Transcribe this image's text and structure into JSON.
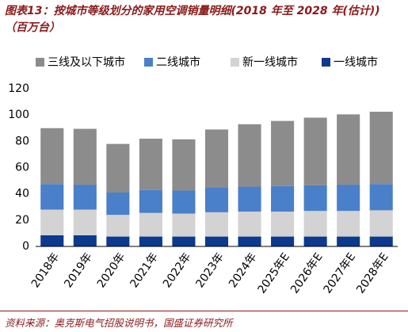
{
  "chart_data": {
    "type": "stacked-bar",
    "title": "图表13：按城市等级划分的家用空调销量明细(2018 年至 2028 年(估计))（百万台）",
    "source": "资料来源：奥克斯电气招股说明书，国盛证券研究所",
    "categories": [
      "2018年",
      "2019年",
      "2020年",
      "2021年",
      "2022年",
      "2023年",
      "2024年",
      "2025年E",
      "2026年E",
      "2027年E",
      "2028年E"
    ],
    "series": [
      {
        "name": "三线及以下城市",
        "color": "#8c8c8c",
        "values": [
          42.5,
          42.5,
          37,
          39,
          39,
          44,
          47.5,
          49.5,
          51.5,
          53.5,
          55
        ]
      },
      {
        "name": "二线城市",
        "color": "#4a7fc9",
        "values": [
          19.5,
          19,
          17,
          17.5,
          17.5,
          19,
          19,
          19.5,
          19.5,
          20,
          20
        ]
      },
      {
        "name": "新一线城市",
        "color": "#d3d3d3",
        "values": [
          19.5,
          19.5,
          16.5,
          18,
          17.5,
          18.5,
          19,
          19,
          19.5,
          19.5,
          20
        ]
      },
      {
        "name": "一线城市",
        "color": "#0b3a8f",
        "values": [
          8.5,
          8.5,
          7.5,
          7.5,
          7.5,
          7.5,
          7.5,
          7.5,
          7.5,
          7.5,
          7.5
        ]
      }
    ],
    "ylim": [
      0,
      120
    ],
    "yticks": [
      0,
      20,
      40,
      60,
      80,
      100,
      120
    ],
    "grid": false
  }
}
